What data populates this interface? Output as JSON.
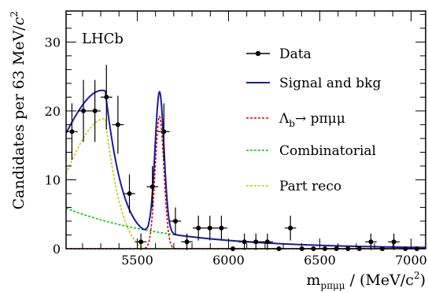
{
  "chart_data": {
    "type": "scatter",
    "experiment_label": "LHCb",
    "xlabel": {
      "base": "m",
      "sub": "pπμμ",
      "unit": " / (MeV/c",
      "sup": "2",
      "close": ")"
    },
    "ylabel": {
      "text": "Candidates per 63 MeV/",
      "c": "c",
      "sup": "2"
    },
    "xlim": [
      5110,
      7080
    ],
    "ylim": [
      0,
      34.5
    ],
    "x_ticks": [
      5500,
      6000,
      6500,
      7000
    ],
    "x_tick_labels": [
      "5500",
      "6000",
      "6500",
      "7000"
    ],
    "y_ticks": [
      0,
      10,
      20,
      30
    ],
    "y_tick_labels": [
      "0",
      "10",
      "20",
      "30"
    ],
    "grid": false,
    "legend_position": "top-right",
    "legend": {
      "data": "Data",
      "total": "Signal and bkg",
      "signal_prefix": "Λ",
      "signal_sub": "b",
      "signal_suffix": "→ pπμμ",
      "combinatorial": "Combinatorial",
      "partreco": "Part reco"
    },
    "colors": {
      "data": "#000000",
      "total": "#1a1aa8",
      "signal": "#e00000",
      "combinatorial": "#00cc00",
      "partreco": "#c8c800"
    },
    "data_points": [
      {
        "x": 5142,
        "y": 17,
        "ey": 4.1
      },
      {
        "x": 5205,
        "y": 20,
        "ey": 4.5
      },
      {
        "x": 5268,
        "y": 20,
        "ey": 4.5
      },
      {
        "x": 5331,
        "y": 22,
        "ey": 4.7
      },
      {
        "x": 5394,
        "y": 18,
        "ey": 4.2
      },
      {
        "x": 5457,
        "y": 8,
        "ey": 2.8
      },
      {
        "x": 5520,
        "y": 1,
        "ey": 1.2
      },
      {
        "x": 5583,
        "y": 9,
        "ey": 3.0
      },
      {
        "x": 5646,
        "y": 17,
        "ey": 4.1
      },
      {
        "x": 5709,
        "y": 4,
        "ey": 2.0
      },
      {
        "x": 5772,
        "y": 1,
        "ey": 1.2
      },
      {
        "x": 5835,
        "y": 3,
        "ey": 1.8
      },
      {
        "x": 5898,
        "y": 3,
        "ey": 1.8
      },
      {
        "x": 5961,
        "y": 3,
        "ey": 1.8
      },
      {
        "x": 6024,
        "y": 0,
        "ey": 0
      },
      {
        "x": 6087,
        "y": 1,
        "ey": 1.2
      },
      {
        "x": 6150,
        "y": 1,
        "ey": 1.2
      },
      {
        "x": 6213,
        "y": 1,
        "ey": 1.2
      },
      {
        "x": 6276,
        "y": 0,
        "ey": 0
      },
      {
        "x": 6339,
        "y": 3,
        "ey": 1.8
      },
      {
        "x": 6402,
        "y": 0,
        "ey": 0
      },
      {
        "x": 6465,
        "y": 0,
        "ey": 0
      },
      {
        "x": 6528,
        "y": 0,
        "ey": 0
      },
      {
        "x": 6591,
        "y": 0,
        "ey": 0
      },
      {
        "x": 6654,
        "y": 0,
        "ey": 0
      },
      {
        "x": 6717,
        "y": 0,
        "ey": 0
      },
      {
        "x": 6780,
        "y": 1,
        "ey": 1.2
      },
      {
        "x": 6843,
        "y": 0,
        "ey": 0
      },
      {
        "x": 6906,
        "y": 1,
        "ey": 1.2
      },
      {
        "x": 6969,
        "y": 0,
        "ey": 0
      },
      {
        "x": 7032,
        "y": 0,
        "ey": 0
      }
    ],
    "bin_width": 63
  }
}
